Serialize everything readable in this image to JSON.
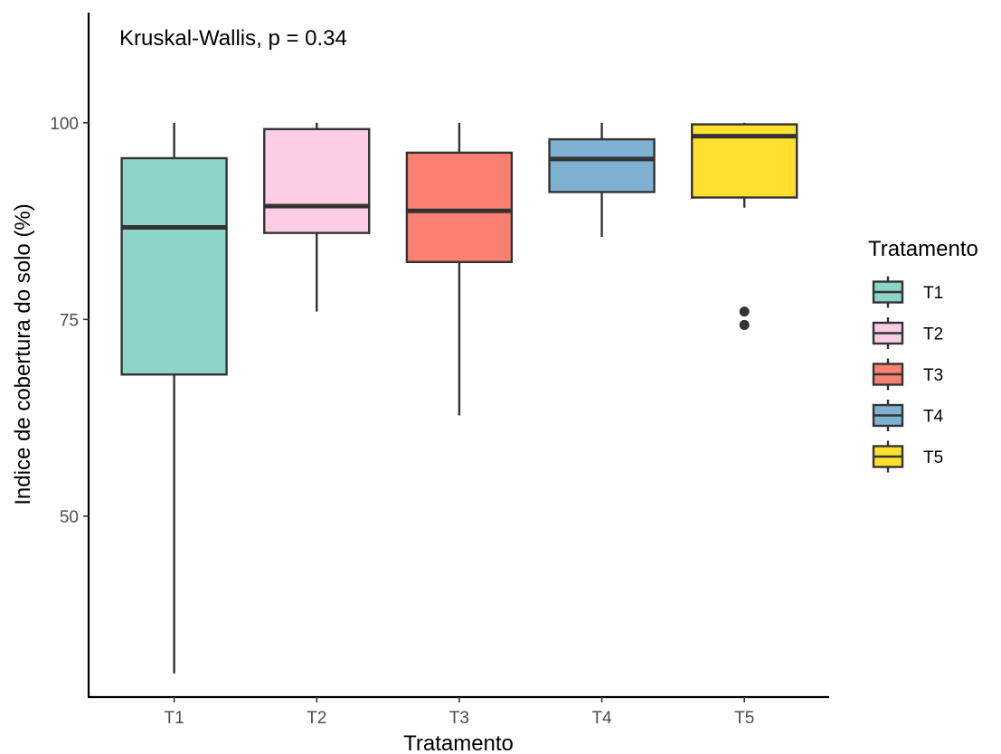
{
  "chart_data": {
    "type": "box",
    "annotation": "Kruskal-Wallis, p = 0.34",
    "xlabel": "Tratamento",
    "ylabel": "Indice de cobertura do solo (%)",
    "ylim": [
      27,
      114
    ],
    "yticks": [
      50,
      75,
      100
    ],
    "categories": [
      "T1",
      "T2",
      "T3",
      "T4",
      "T5"
    ],
    "legend": {
      "title": "Tratamento",
      "position": "right"
    },
    "grid": false,
    "series": [
      {
        "name": "T1",
        "color": "#8dd3c7",
        "min": 30.0,
        "q1": 68.0,
        "median": 86.7,
        "q3": 95.5,
        "max": 100,
        "outliers": []
      },
      {
        "name": "T2",
        "color": "#fccde5",
        "min": 76.0,
        "q1": 86.0,
        "median": 89.4,
        "q3": 99.2,
        "max": 100,
        "outliers": []
      },
      {
        "name": "T3",
        "color": "#fb8072",
        "min": 62.8,
        "q1": 82.3,
        "median": 88.8,
        "q3": 96.2,
        "max": 100,
        "outliers": []
      },
      {
        "name": "T4",
        "color": "#80b1d3",
        "min": 85.5,
        "q1": 91.2,
        "median": 95.4,
        "q3": 97.9,
        "max": 100,
        "outliers": []
      },
      {
        "name": "T5",
        "color": "#ffe02e",
        "min": 89.2,
        "q1": 90.5,
        "median": 98.3,
        "q3": 99.8,
        "max": 100,
        "outliers": [
          76.0,
          74.3
        ]
      }
    ]
  }
}
